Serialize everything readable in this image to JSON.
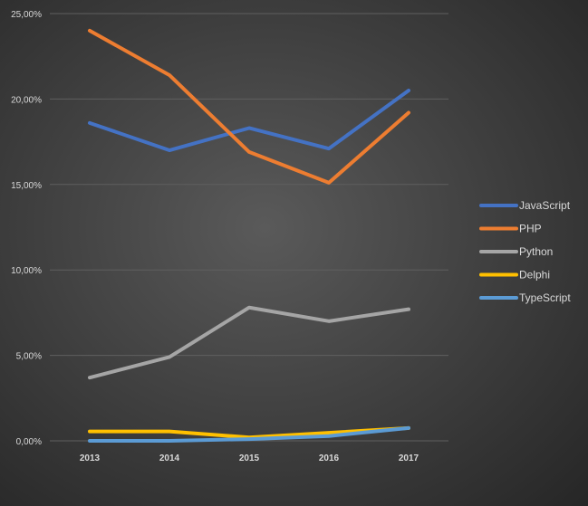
{
  "chart_data": {
    "type": "line",
    "title": "",
    "xlabel": "",
    "ylabel": "",
    "categories": [
      "2013",
      "2014",
      "2015",
      "2016",
      "2017"
    ],
    "ylim": [
      0,
      25
    ],
    "yticks": [
      "0,00%",
      "5,00%",
      "10,00%",
      "15,00%",
      "20,00%",
      "25,00%"
    ],
    "grid": true,
    "legend_position": "right",
    "series": [
      {
        "name": "JavaScript",
        "color": "#4472c4",
        "values": [
          18.6,
          17.0,
          18.3,
          17.1,
          20.5
        ]
      },
      {
        "name": "PHP",
        "color": "#ed7d31",
        "values": [
          24.0,
          21.4,
          16.9,
          15.1,
          19.2
        ]
      },
      {
        "name": "Python",
        "color": "#a5a5a5",
        "values": [
          3.7,
          4.9,
          7.8,
          7.0,
          7.7
        ]
      },
      {
        "name": "Delphi",
        "color": "#ffc000",
        "values": [
          0.55,
          0.55,
          0.2,
          0.47,
          0.75
        ]
      },
      {
        "name": "TypeScript",
        "color": "#5b9bd5",
        "values": [
          0.0,
          0.0,
          0.1,
          0.28,
          0.75
        ]
      }
    ]
  }
}
